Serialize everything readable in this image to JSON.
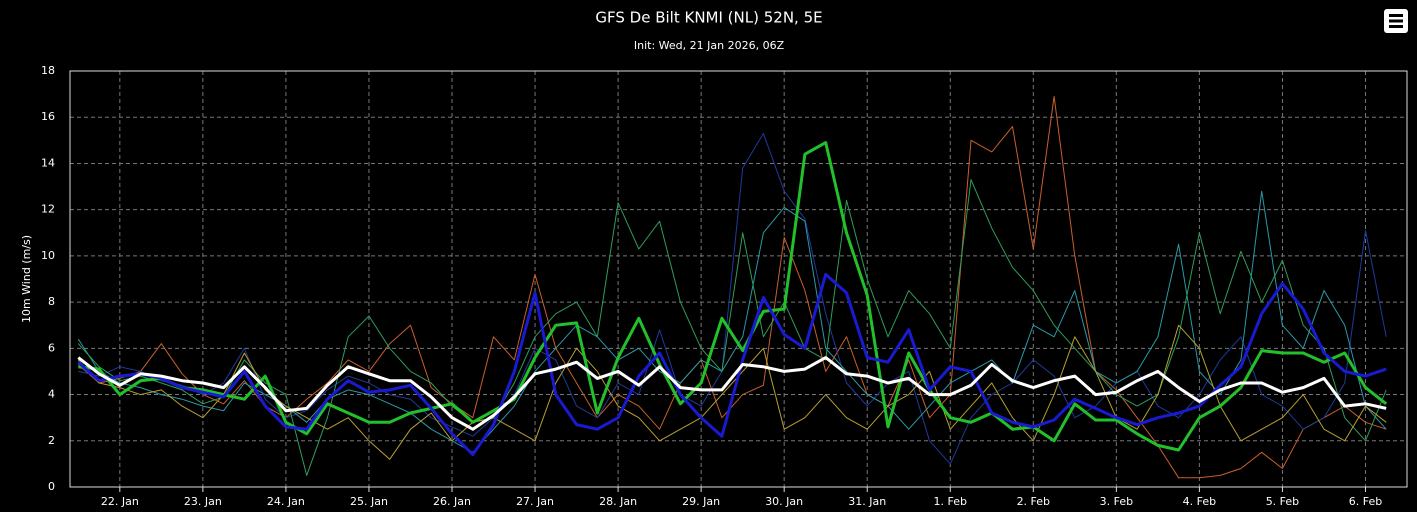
{
  "chart_data": {
    "type": "line",
    "title": "GFS De Bilt KNMI (NL) 52N, 5E",
    "subtitle": "Init: Wed, 21 Jan 2026, 06Z",
    "y_label": "10m Wind (m/s)",
    "grid": true,
    "xlim": [
      21.4,
      37.5
    ],
    "xticks": [
      {
        "value": 22,
        "label": "22. Jan"
      },
      {
        "value": 23,
        "label": "23. Jan"
      },
      {
        "value": 24,
        "label": "24. Jan"
      },
      {
        "value": 25,
        "label": "25. Jan"
      },
      {
        "value": 26,
        "label": "26. Jan"
      },
      {
        "value": 27,
        "label": "27. Jan"
      },
      {
        "value": 28,
        "label": "28. Jan"
      },
      {
        "value": 29,
        "label": "29. Jan"
      },
      {
        "value": 30,
        "label": "30. Jan"
      },
      {
        "value": 31,
        "label": "31. Jan"
      },
      {
        "value": 32,
        "label": "1. Feb"
      },
      {
        "value": 33,
        "label": "2. Feb"
      },
      {
        "value": 34,
        "label": "3. Feb"
      },
      {
        "value": 35,
        "label": "4. Feb"
      },
      {
        "value": 36,
        "label": "5. Feb"
      },
      {
        "value": 37,
        "label": "6. Feb"
      }
    ],
    "ylim": [
      0,
      18
    ],
    "yticks": [
      0,
      2,
      4,
      6,
      8,
      10,
      12,
      14,
      16,
      18
    ],
    "x": [
      21.5,
      21.75,
      22,
      22.25,
      22.5,
      22.75,
      23,
      23.25,
      23.5,
      23.75,
      24,
      24.25,
      24.5,
      24.75,
      25,
      25.25,
      25.5,
      25.75,
      26,
      26.25,
      26.5,
      26.75,
      27,
      27.25,
      27.5,
      27.75,
      28,
      28.25,
      28.5,
      28.75,
      29,
      29.25,
      29.5,
      29.75,
      30,
      30.25,
      30.5,
      30.75,
      31,
      31.25,
      31.5,
      31.75,
      32,
      32.25,
      32.5,
      32.75,
      33,
      33.25,
      33.5,
      33.75,
      34,
      34.25,
      34.5,
      34.75,
      35,
      35.25,
      35.5,
      35.75,
      36,
      36.25,
      36.5,
      36.75,
      37,
      37.25
    ],
    "series": [
      {
        "color": "#c8602a",
        "width": 1,
        "values": [
          5.3,
          4.5,
          4.7,
          5.0,
          6.2,
          4.9,
          4.0,
          3.6,
          4.6,
          3.5,
          3.0,
          3.8,
          4.5,
          5.5,
          5.0,
          6.2,
          7.0,
          4.3,
          3.6,
          3.0,
          6.5,
          5.5,
          9.2,
          6.0,
          4.5,
          3.0,
          4.0,
          3.5,
          2.5,
          4.5,
          5.5,
          3.0,
          4.0,
          4.4,
          10.8,
          8.5,
          5.0,
          6.5,
          4.0,
          3.5,
          5.5,
          3.0,
          4.0,
          15.0,
          14.5,
          15.6,
          10.3,
          16.9,
          10.0,
          5.0,
          4.2,
          3.0,
          1.8,
          0.4,
          0.4,
          0.5,
          0.8,
          1.5,
          0.8,
          2.5,
          3.0,
          3.5,
          2.8,
          2.5
        ]
      },
      {
        "color": "#1f3a9a",
        "width": 1,
        "values": [
          5.0,
          4.8,
          5.2,
          5.0,
          4.6,
          4.4,
          4.0,
          4.5,
          6.0,
          3.8,
          3.0,
          3.3,
          4.2,
          4.8,
          4.5,
          4.0,
          3.8,
          3.0,
          2.6,
          2.2,
          3.0,
          4.0,
          6.0,
          5.5,
          3.5,
          3.0,
          4.5,
          4.0,
          6.8,
          4.0,
          3.5,
          5.0,
          13.8,
          15.3,
          12.8,
          11.6,
          7.5,
          4.5,
          3.5,
          4.5,
          5.0,
          2.0,
          1.0,
          3.0,
          4.0,
          4.5,
          5.5,
          4.8,
          3.0,
          3.5,
          4.5,
          5.0,
          3.5,
          3.0,
          4.0,
          5.5,
          6.5,
          4.0,
          3.5,
          2.5,
          3.0,
          4.5,
          11.1,
          6.5
        ]
      },
      {
        "color": "#2a9aa8",
        "width": 1,
        "values": [
          6.4,
          5.0,
          4.5,
          4.3,
          4.0,
          3.8,
          3.5,
          3.3,
          4.5,
          4.0,
          3.5,
          2.8,
          3.8,
          4.2,
          4.0,
          3.6,
          3.2,
          2.5,
          2.0,
          1.5,
          2.5,
          3.5,
          5.0,
          6.0,
          7.0,
          6.5,
          5.5,
          6.0,
          5.0,
          4.5,
          5.5,
          5.0,
          6.5,
          11.0,
          12.1,
          11.5,
          6.0,
          5.0,
          4.0,
          3.5,
          2.5,
          3.5,
          4.5,
          5.0,
          5.5,
          4.5,
          7.0,
          6.5,
          8.5,
          5.0,
          4.5,
          5.0,
          6.5,
          10.5,
          5.0,
          4.0,
          5.5,
          12.8,
          7.0,
          6.0,
          8.5,
          7.0,
          3.5,
          2.5
        ]
      },
      {
        "color": "#2e9e5a",
        "width": 1,
        "values": [
          6.2,
          5.2,
          4.6,
          4.8,
          4.5,
          4.2,
          3.6,
          3.9,
          5.5,
          4.5,
          4.0,
          0.5,
          3.0,
          6.5,
          7.4,
          6.0,
          5.0,
          4.5,
          3.5,
          2.8,
          3.0,
          4.5,
          6.5,
          7.5,
          8.0,
          6.5,
          12.3,
          10.3,
          11.5,
          8.0,
          6.0,
          5.0,
          11.0,
          6.5,
          8.0,
          6.0,
          5.5,
          12.4,
          9.0,
          6.5,
          8.5,
          7.5,
          6.0,
          13.3,
          11.2,
          9.5,
          8.5,
          7.0,
          6.0,
          5.0,
          4.0,
          3.5,
          4.0,
          6.5,
          11.0,
          7.5,
          10.2,
          8.0,
          9.8,
          7.0,
          6.0,
          3.0,
          2.0,
          4.2
        ]
      },
      {
        "color": "#b8a030",
        "width": 1,
        "values": [
          5.5,
          4.5,
          4.3,
          4.0,
          4.2,
          3.5,
          3.0,
          4.0,
          5.8,
          4.2,
          3.5,
          3.0,
          2.5,
          3.0,
          2.0,
          1.2,
          2.5,
          3.2,
          2.0,
          2.8,
          3.0,
          2.5,
          2.0,
          4.5,
          6.0,
          5.0,
          3.5,
          3.0,
          2.0,
          2.5,
          3.0,
          4.0,
          5.0,
          6.0,
          2.5,
          3.0,
          4.0,
          3.0,
          2.5,
          3.5,
          4.0,
          5.0,
          2.5,
          3.5,
          4.5,
          3.0,
          2.0,
          4.0,
          6.5,
          5.0,
          3.0,
          2.5,
          4.0,
          7.0,
          6.0,
          3.5,
          2.0,
          2.5,
          3.0,
          4.0,
          2.5,
          2.0,
          3.5,
          2.8
        ]
      },
      {
        "color": "#22c02a",
        "width": 3,
        "values": [
          5.2,
          5.1,
          4.0,
          4.6,
          4.7,
          4.3,
          4.2,
          4.0,
          3.8,
          4.8,
          2.8,
          2.3,
          3.6,
          3.2,
          2.8,
          2.8,
          3.2,
          3.4,
          3.6,
          2.8,
          3.3,
          3.8,
          5.6,
          7.0,
          7.1,
          3.2,
          5.6,
          7.3,
          5.3,
          3.6,
          4.5,
          7.3,
          5.9,
          7.6,
          7.7,
          14.4,
          14.9,
          11.0,
          8.3,
          2.6,
          5.8,
          4.2,
          3.0,
          2.8,
          3.2,
          2.5,
          2.6,
          2.0,
          3.6,
          2.9,
          2.9,
          2.3,
          1.8,
          1.6,
          3.0,
          3.5,
          4.3,
          5.9,
          5.8,
          5.8,
          5.4,
          5.8,
          4.3,
          3.6
        ]
      },
      {
        "color": "#1a1ad0",
        "width": 3,
        "values": [
          5.4,
          4.6,
          4.8,
          4.9,
          4.7,
          4.3,
          4.1,
          3.9,
          5.0,
          3.5,
          2.6,
          2.5,
          3.8,
          4.6,
          4.1,
          4.2,
          4.4,
          3.4,
          2.3,
          1.4,
          2.7,
          5.0,
          8.4,
          4.0,
          2.7,
          2.5,
          3.0,
          4.8,
          5.8,
          4.0,
          3.0,
          2.2,
          5.5,
          8.2,
          6.6,
          6.0,
          9.2,
          8.4,
          5.6,
          5.4,
          6.8,
          4.2,
          5.2,
          5.0,
          3.2,
          2.8,
          2.6,
          2.9,
          3.8,
          3.4,
          3.0,
          2.7,
          3.0,
          3.2,
          3.5,
          4.4,
          5.2,
          7.5,
          8.8,
          7.7,
          5.8,
          5.0,
          4.8,
          5.1
        ]
      },
      {
        "color": "#ffffff",
        "width": 3,
        "values": [
          5.6,
          4.9,
          4.4,
          4.9,
          4.8,
          4.6,
          4.5,
          4.3,
          5.2,
          4.3,
          3.3,
          3.4,
          4.4,
          5.2,
          4.9,
          4.6,
          4.6,
          3.9,
          3.0,
          2.5,
          3.1,
          3.9,
          4.9,
          5.1,
          5.4,
          4.7,
          5.0,
          4.4,
          5.2,
          4.3,
          4.2,
          4.2,
          5.3,
          5.2,
          5.0,
          5.1,
          5.6,
          4.9,
          4.8,
          4.5,
          4.7,
          4.0,
          4.0,
          4.4,
          5.3,
          4.6,
          4.3,
          4.6,
          4.8,
          4.0,
          4.1,
          4.6,
          5.0,
          4.3,
          3.7,
          4.2,
          4.5,
          4.5,
          4.1,
          4.3,
          4.7,
          3.5,
          3.6,
          3.4
        ]
      }
    ]
  }
}
